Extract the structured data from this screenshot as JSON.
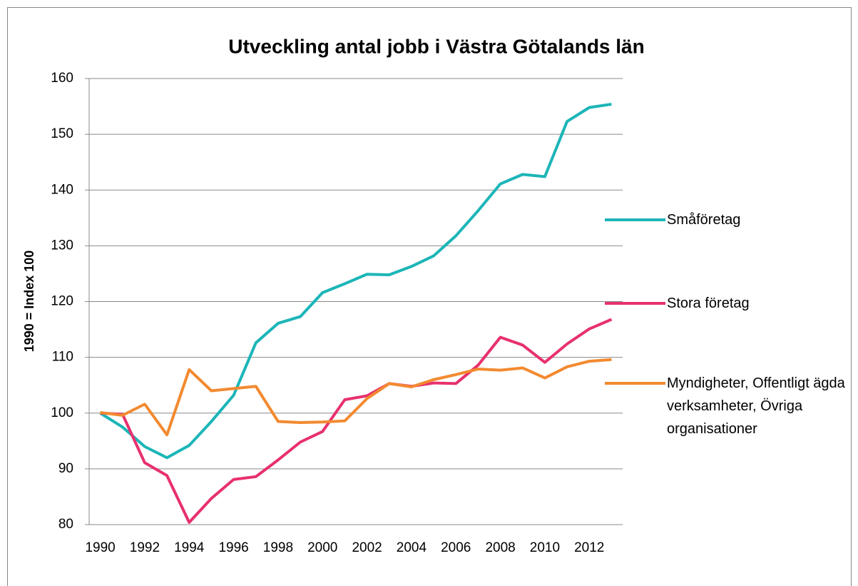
{
  "chart_data": {
    "type": "line",
    "title": "Utveckling antal jobb i Västra Götalands län",
    "y_label": "1990 = Index 100",
    "categories": [
      "1990",
      null,
      "1992",
      null,
      "1994",
      null,
      "1996",
      null,
      "1998",
      null,
      "2000",
      null,
      "2002",
      null,
      "2004",
      null,
      "2006",
      null,
      "2008",
      null,
      "2010",
      null,
      "2012",
      null
    ],
    "series": [
      {
        "name": "Småföretag",
        "color": "#1cb5b8",
        "values": [
          100,
          97.5,
          94,
          92,
          94.2,
          98.5,
          103.2,
          112.6,
          116.1,
          117.3,
          121.6,
          123.2,
          124.9,
          124.8,
          126.3,
          128.2,
          131.8,
          136.3,
          141.1,
          142.8,
          142.4,
          152.3,
          154.8,
          155.4
        ]
      },
      {
        "name": "Stora företag",
        "color": "#e8306e",
        "values": [
          100,
          99.8,
          91.1,
          88.8,
          80.4,
          84.7,
          88.1,
          88.6,
          91.6,
          94.8,
          96.7,
          102.4,
          103.1,
          105.3,
          104.8,
          105.4,
          105.3,
          108.6,
          113.6,
          112.2,
          109.1,
          112.4,
          115.1,
          116.8
        ]
      },
      {
        "name": "Myndigheter, Offentligt ägda verksamheter, Övriga organisationer",
        "color": "#f28a30",
        "values": [
          100.1,
          99.6,
          101.6,
          96.1,
          107.8,
          104.0,
          104.4,
          104.8,
          98.5,
          98.3,
          98.4,
          98.6,
          102.6,
          105.3,
          104.7,
          106.0,
          106.9,
          107.9,
          107.7,
          108.1,
          106.3,
          108.3,
          109.3,
          109.6
        ]
      }
    ],
    "ylim": [
      80,
      160
    ],
    "yticks": [
      80,
      90,
      100,
      110,
      120,
      130,
      140,
      150,
      160
    ],
    "grid": true,
    "legend": "right"
  }
}
